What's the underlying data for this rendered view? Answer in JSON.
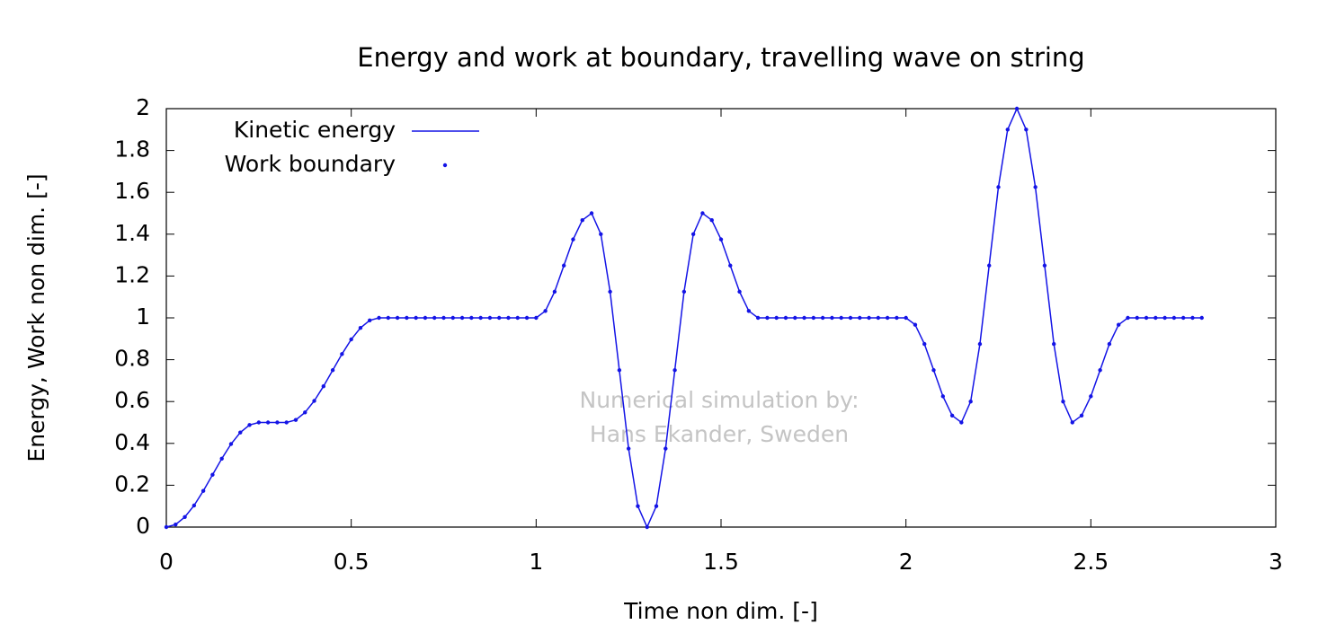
{
  "chart_data": {
    "type": "line",
    "title": "Energy and work at boundary, travelling wave on string",
    "xlabel": "Time non dim. [-]",
    "ylabel": "Energy, Work non dim. [-]",
    "annotations": [
      "Numerical simulation by:",
      "Hans Ekander, Sweden"
    ],
    "x": [
      0,
      0.025,
      0.05,
      0.075,
      0.1,
      0.125,
      0.15,
      0.175,
      0.2,
      0.225,
      0.25,
      0.275,
      0.3,
      0.325,
      0.35,
      0.375,
      0.4,
      0.425,
      0.45,
      0.475,
      0.5,
      0.525,
      0.55,
      0.575,
      0.6,
      0.625,
      0.65,
      0.675,
      0.7,
      0.725,
      0.75,
      0.775,
      0.8,
      0.825,
      0.85,
      0.875,
      0.9,
      0.925,
      0.95,
      0.975,
      1,
      1.025,
      1.05,
      1.075,
      1.1,
      1.125,
      1.15,
      1.175,
      1.2,
      1.225,
      1.25,
      1.275,
      1.3,
      1.325,
      1.35,
      1.375,
      1.4,
      1.425,
      1.45,
      1.475,
      1.5,
      1.525,
      1.55,
      1.575,
      1.6,
      1.625,
      1.65,
      1.675,
      1.7,
      1.725,
      1.75,
      1.775,
      1.8,
      1.825,
      1.85,
      1.875,
      1.9,
      1.925,
      1.95,
      1.975,
      2,
      2.025,
      2.05,
      2.075,
      2.1,
      2.125,
      2.15,
      2.175,
      2.2,
      2.225,
      2.25,
      2.275,
      2.3,
      2.325,
      2.35,
      2.375,
      2.4,
      2.425,
      2.45,
      2.475,
      2.5,
      2.525,
      2.55,
      2.575,
      2.6,
      2.625,
      2.65,
      2.675,
      2.7,
      2.725,
      2.75,
      2.775,
      2.8
    ],
    "series": [
      {
        "name": "Kinetic energy",
        "color": "#1414e6",
        "marker": "line",
        "values": [
          0,
          0.012,
          0.048,
          0.103,
          0.173,
          0.25,
          0.327,
          0.397,
          0.452,
          0.488,
          0.5,
          0.5,
          0.5,
          0.5,
          0.512,
          0.548,
          0.603,
          0.673,
          0.75,
          0.827,
          0.897,
          0.952,
          0.988,
          1,
          1,
          1,
          1,
          1,
          1,
          1,
          1,
          1,
          1,
          1,
          1,
          1,
          1,
          1,
          1,
          1,
          1,
          1.033,
          1.125,
          1.25,
          1.375,
          1.467,
          1.5,
          1.4,
          1.125,
          0.75,
          0.375,
          0.1,
          0,
          0.1,
          0.375,
          0.75,
          1.125,
          1.4,
          1.5,
          1.467,
          1.375,
          1.25,
          1.125,
          1.033,
          1,
          1,
          1,
          1,
          1,
          1,
          1,
          1,
          1,
          1,
          1,
          1,
          1,
          1,
          1,
          1,
          1,
          0.967,
          0.875,
          0.75,
          0.625,
          0.533,
          0.5,
          0.6,
          0.875,
          1.25,
          1.625,
          1.9,
          2,
          1.9,
          1.625,
          1.25,
          0.875,
          0.6,
          0.5,
          0.533,
          0.625,
          0.75,
          0.875,
          0.967,
          1,
          1,
          1,
          1,
          1,
          1,
          1,
          1,
          1
        ]
      },
      {
        "name": "Work boundary",
        "color": "#1414e6",
        "marker": "points",
        "values": [
          0,
          0.012,
          0.048,
          0.103,
          0.173,
          0.25,
          0.327,
          0.397,
          0.452,
          0.488,
          0.5,
          0.5,
          0.5,
          0.5,
          0.512,
          0.548,
          0.603,
          0.673,
          0.75,
          0.827,
          0.897,
          0.952,
          0.988,
          1,
          1,
          1,
          1,
          1,
          1,
          1,
          1,
          1,
          1,
          1,
          1,
          1,
          1,
          1,
          1,
          1,
          1,
          1.033,
          1.125,
          1.25,
          1.375,
          1.467,
          1.5,
          1.4,
          1.125,
          0.75,
          0.375,
          0.1,
          0,
          0.1,
          0.375,
          0.75,
          1.125,
          1.4,
          1.5,
          1.467,
          1.375,
          1.25,
          1.125,
          1.033,
          1,
          1,
          1,
          1,
          1,
          1,
          1,
          1,
          1,
          1,
          1,
          1,
          1,
          1,
          1,
          1,
          1,
          0.967,
          0.875,
          0.75,
          0.625,
          0.533,
          0.5,
          0.6,
          0.875,
          1.25,
          1.625,
          1.9,
          2,
          1.9,
          1.625,
          1.25,
          0.875,
          0.6,
          0.5,
          0.533,
          0.625,
          0.75,
          0.875,
          0.967,
          1,
          1,
          1,
          1,
          1,
          1,
          1,
          1,
          1
        ]
      }
    ],
    "xlim": [
      0,
      3
    ],
    "xticks": [
      0,
      0.5,
      1,
      1.5,
      2,
      2.5,
      3
    ],
    "ylim": [
      0,
      2
    ],
    "yticks": [
      0,
      0.2,
      0.4,
      0.6,
      0.8,
      1,
      1.2,
      1.4,
      1.6,
      1.8,
      2
    ],
    "grid": false,
    "legend": "top-left"
  }
}
